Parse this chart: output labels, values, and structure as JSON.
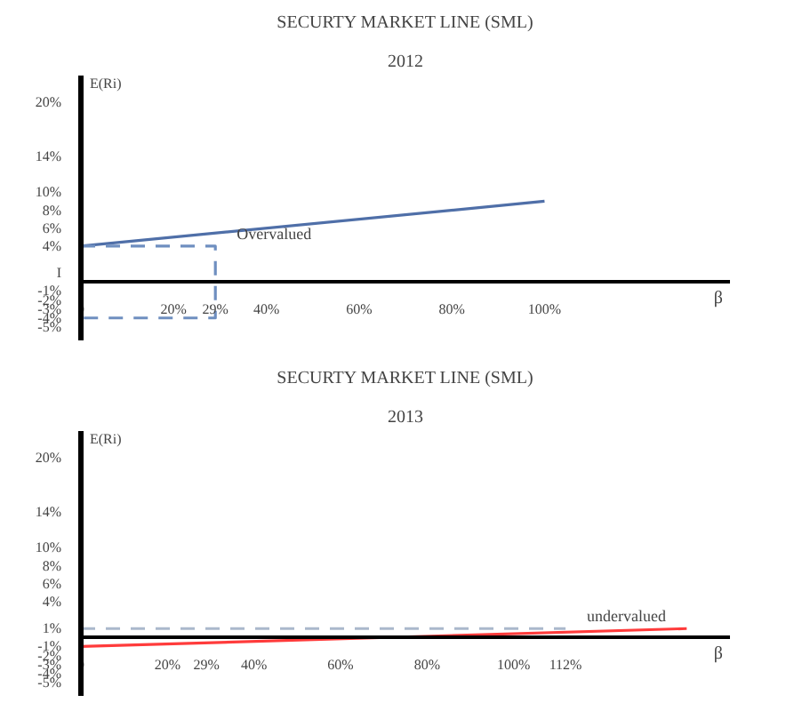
{
  "chart_data": [
    {
      "type": "line",
      "title": "SECURTY MARKET LINE (SML)",
      "subtitle": "2012",
      "xlabel": "β",
      "ylabel": "E(Ri)",
      "xlim": [
        0,
        140
      ],
      "ylim": [
        -6.5,
        23
      ],
      "xticks": [
        0,
        {
          "value": 20,
          "label": "20%"
        },
        {
          "value": 29,
          "label": "29%"
        },
        {
          "value": 40,
          "label": "40%"
        },
        {
          "value": 60,
          "label": "60%"
        },
        {
          "value": 80,
          "label": "80%"
        },
        {
          "value": 100,
          "label": "100%"
        }
      ],
      "yticks": [
        {
          "value": 20,
          "label": "20%"
        },
        {
          "value": 14,
          "label": "14%"
        },
        {
          "value": 10,
          "label": "10%"
        },
        {
          "value": 8,
          "label": "8%"
        },
        {
          "value": 6,
          "label": "6%"
        },
        {
          "value": 4,
          "label": "4%"
        },
        {
          "value": 1,
          "label": "I"
        },
        {
          "value": -1,
          "label": "-1%"
        },
        {
          "value": -2,
          "label": "-2%"
        },
        {
          "value": -3,
          "label": "-3%"
        },
        {
          "value": -4,
          "label": "-4%"
        },
        {
          "value": -5,
          "label": "-5%"
        }
      ],
      "series": [
        {
          "color": "#4f6fa8",
          "x": [
            0,
            100
          ],
          "values": [
            4,
            9
          ],
          "line_style": "solid"
        },
        {
          "color": "#6f8fc0",
          "x": [
            0,
            29,
            29,
            0
          ],
          "values": [
            4,
            4,
            -4,
            -4
          ],
          "line_style": "dashed"
        }
      ],
      "annotations": [
        {
          "text": "Overvalued",
          "x": 29,
          "y": 4
        }
      ]
    },
    {
      "type": "line",
      "title": "SECURTY MARKET LINE (SML)",
      "subtitle": "2013",
      "xlabel": "β",
      "ylabel": "E(Ri)",
      "xlim": [
        0,
        150
      ],
      "ylim": [
        -6.5,
        23
      ],
      "xticks": [
        0,
        {
          "value": 20,
          "label": "20%"
        },
        {
          "value": 29,
          "label": "29%"
        },
        {
          "value": 40,
          "label": "40%"
        },
        {
          "value": 60,
          "label": "60%"
        },
        {
          "value": 80,
          "label": "80%"
        },
        {
          "value": 100,
          "label": "100%"
        },
        {
          "value": 112,
          "label": "112%"
        }
      ],
      "yticks": [
        {
          "value": 20,
          "label": "20%"
        },
        {
          "value": 14,
          "label": "14%"
        },
        {
          "value": 10,
          "label": "10%"
        },
        {
          "value": 8,
          "label": "8%"
        },
        {
          "value": 6,
          "label": "6%"
        },
        {
          "value": 4,
          "label": "4%"
        },
        {
          "value": 1,
          "label": "1%"
        },
        {
          "value": -1,
          "label": "-1%"
        },
        {
          "value": -2,
          "label": "-2%"
        },
        {
          "value": -3,
          "label": "-3%"
        },
        {
          "value": -4,
          "label": "-4%"
        },
        {
          "value": -5,
          "label": "-5%"
        }
      ],
      "series": [
        {
          "color": "#ff3b3b",
          "x": [
            0,
            140
          ],
          "values": [
            -1,
            1
          ],
          "line_style": "solid"
        },
        {
          "color": "#aab8cc",
          "x": [
            0,
            112
          ],
          "values": [
            1,
            1
          ],
          "line_style": "dashed"
        }
      ],
      "annotations": [
        {
          "text": "undervalued",
          "x": 112,
          "y": 1
        }
      ]
    }
  ]
}
